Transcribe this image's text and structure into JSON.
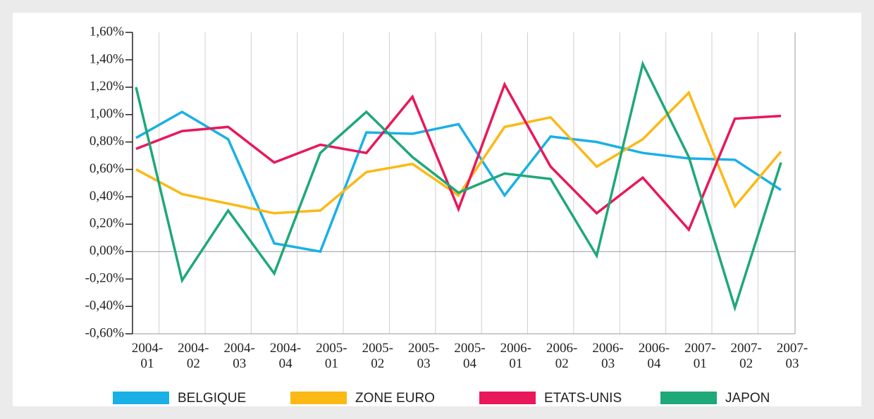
{
  "chart_data": {
    "type": "line",
    "categories": [
      "2004-\n01",
      "2004-\n02",
      "2004-\n03",
      "2004-\n04",
      "2005-\n01",
      "2005-\n02",
      "2005-\n03",
      "2005-\n04",
      "2006-\n01",
      "2006-\n02",
      "2006-\n03",
      "2006-\n04",
      "2007-\n01",
      "2007-\n02",
      "2007-\n03"
    ],
    "series": [
      {
        "name": "BELGIQUE",
        "color": "#1ab0e6",
        "values": [
          0.83,
          1.02,
          0.82,
          0.06,
          0.0,
          0.87,
          0.86,
          0.93,
          0.41,
          0.84,
          0.8,
          0.72,
          0.68,
          0.67,
          0.45
        ]
      },
      {
        "name": "ZONE EURO",
        "color": "#fbb915",
        "values": [
          0.6,
          0.42,
          0.35,
          0.28,
          0.3,
          0.58,
          0.64,
          0.41,
          0.91,
          0.98,
          0.62,
          0.82,
          1.16,
          0.33,
          0.73
        ]
      },
      {
        "name": "ETATS-UNIS",
        "color": "#e8185a",
        "values": [
          0.75,
          0.88,
          0.91,
          0.65,
          0.78,
          0.72,
          1.13,
          0.31,
          1.22,
          0.62,
          0.28,
          0.54,
          0.16,
          0.97,
          0.99
        ]
      },
      {
        "name": "JAPON",
        "color": "#1fa878",
        "values": [
          1.2,
          -0.21,
          0.3,
          -0.16,
          0.72,
          1.02,
          0.69,
          0.43,
          0.57,
          0.53,
          -0.03,
          1.37,
          0.69,
          -0.41,
          0.65
        ]
      }
    ],
    "ylim": [
      -0.6,
      1.6
    ],
    "yticks": [
      {
        "value": -0.6,
        "label": "-0,60%"
      },
      {
        "value": -0.4,
        "label": "-0,40%"
      },
      {
        "value": -0.2,
        "label": "-0,20%"
      },
      {
        "value": 0,
        "label": "0,00%"
      },
      {
        "value": 0.2,
        "label": "0,20%"
      },
      {
        "value": 0.4,
        "label": "0,40%"
      },
      {
        "value": 0.6,
        "label": "0,60%"
      },
      {
        "value": 0.8,
        "label": "0,80%"
      },
      {
        "value": 1.0,
        "label": "1,00%"
      },
      {
        "value": 1.2,
        "label": "1,20%"
      },
      {
        "value": 1.4,
        "label": "1,40%"
      },
      {
        "value": 1.6,
        "label": "1,60%"
      }
    ],
    "grid": true,
    "legend": "bottom"
  }
}
